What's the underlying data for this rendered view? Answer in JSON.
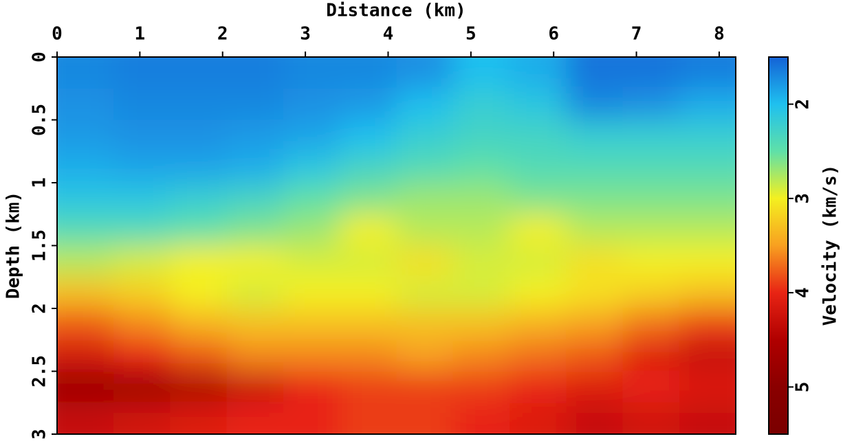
{
  "chart_data": {
    "type": "heatmap",
    "xlabel": "Distance (km)",
    "ylabel": "Depth (km)",
    "colorbar_label": "Velocity (km/s)",
    "xlim": [
      0,
      8.2
    ],
    "xticks": [
      0,
      1,
      2,
      3,
      4,
      5,
      6,
      7,
      8
    ],
    "ylim": [
      0,
      3
    ],
    "yticks": [
      0,
      0.5,
      1,
      1.5,
      2,
      2.5,
      3
    ],
    "clim": [
      1.5,
      5.5
    ],
    "colorbar_ticks": [
      2,
      3,
      4,
      5
    ],
    "colormap": [
      "#1462d6",
      "#1fc0ef",
      "#5fe0a8",
      "#f4f020",
      "#f8a020",
      "#e82414",
      "#b00000",
      "#8a0000",
      "#7a0000"
    ],
    "z": [
      [
        1.7,
        1.65,
        1.65,
        1.65,
        1.7,
        1.7,
        1.75,
        2.0,
        1.9,
        1.6,
        1.6,
        1.65
      ],
      [
        1.75,
        1.7,
        1.7,
        1.7,
        1.75,
        1.8,
        2.0,
        2.2,
        2.1,
        1.7,
        1.75,
        1.9
      ],
      [
        1.8,
        1.75,
        1.75,
        1.8,
        1.85,
        2.0,
        2.2,
        2.3,
        2.3,
        2.2,
        2.2,
        2.2
      ],
      [
        1.9,
        1.85,
        1.85,
        1.9,
        2.1,
        2.3,
        2.4,
        2.5,
        2.4,
        2.4,
        2.4,
        2.4
      ],
      [
        2.1,
        2.1,
        2.2,
        2.3,
        2.5,
        2.6,
        2.7,
        2.7,
        2.6,
        2.6,
        2.6,
        2.6
      ],
      [
        2.4,
        2.4,
        2.5,
        2.6,
        2.7,
        3.0,
        2.8,
        2.8,
        3.0,
        2.8,
        2.8,
        2.8
      ],
      [
        2.8,
        2.9,
        3.0,
        3.0,
        2.9,
        2.9,
        3.1,
        2.9,
        2.9,
        3.1,
        3.0,
        3.0
      ],
      [
        3.3,
        3.2,
        3.0,
        2.9,
        3.0,
        3.0,
        2.9,
        2.9,
        3.0,
        3.1,
        3.2,
        3.3
      ],
      [
        3.8,
        3.6,
        3.4,
        3.3,
        3.3,
        3.3,
        3.3,
        3.3,
        3.4,
        3.5,
        3.7,
        3.9
      ],
      [
        4.2,
        4.0,
        3.8,
        3.6,
        3.6,
        3.6,
        3.5,
        3.6,
        3.7,
        3.8,
        4.1,
        4.3
      ],
      [
        4.8,
        4.8,
        4.6,
        4.3,
        4.0,
        3.9,
        3.9,
        3.9,
        4.0,
        4.1,
        4.0,
        4.1
      ],
      [
        4.3,
        4.2,
        4.1,
        4.0,
        4.0,
        3.9,
        3.9,
        4.0,
        4.1,
        4.3,
        4.2,
        4.3
      ]
    ]
  }
}
